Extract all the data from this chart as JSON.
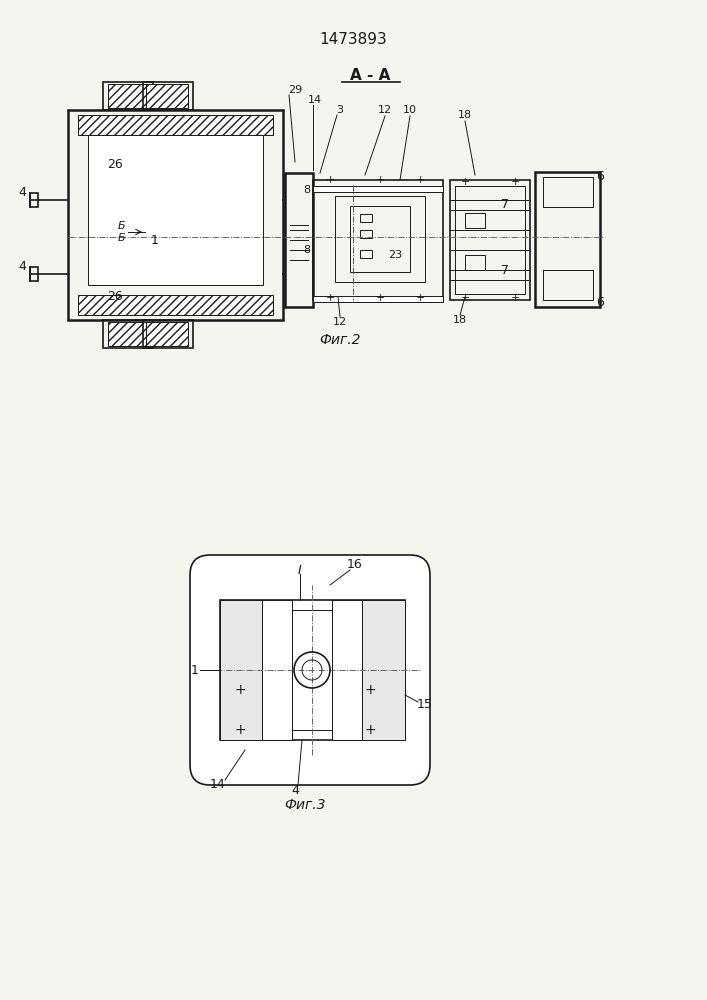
{
  "title": "1473893",
  "fig2_label": "Фиг.2",
  "fig3_label": "Фиг.3",
  "section_label": "А - А",
  "bg_color": "#f5f5f0",
  "line_color": "#1a1a1a",
  "hatch_color": "#333333"
}
